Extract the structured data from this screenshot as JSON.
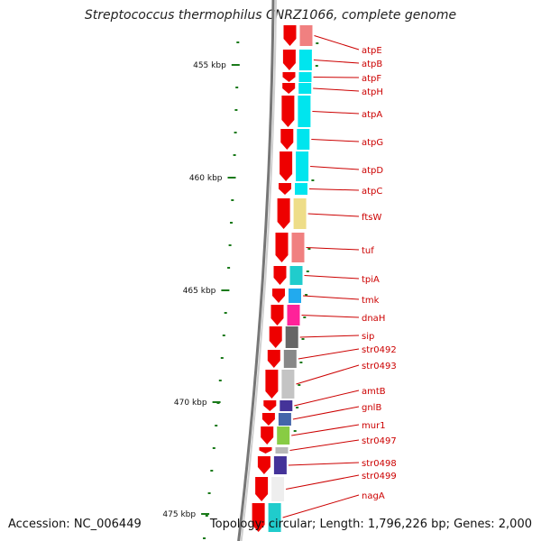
{
  "title": "Streptococcus thermophilus CNRZ1066, complete genome",
  "footer": {
    "accession": "Accession: NC_006449",
    "summary": "Topology: circular; Length: 1,796,226 bp; Genes: 2,000"
  },
  "colors": {
    "gene_arrow": "#ee0000",
    "backbone": "#888888",
    "tick": "#1a7a1a",
    "label": "#cc0000"
  },
  "ticks": [
    {
      "kbp": 455,
      "label": "455 kbp"
    },
    {
      "kbp": 460,
      "label": "460 kbp"
    },
    {
      "kbp": 465,
      "label": "465 kbp"
    },
    {
      "kbp": 470,
      "label": "470 kbp"
    },
    {
      "kbp": 475,
      "label": "475 kbp"
    }
  ],
  "genes": [
    {
      "name": "atpE",
      "color": "#f08080"
    },
    {
      "name": "atpB",
      "color": "#00e5ee"
    },
    {
      "name": "atpF",
      "color": "#00e5ee"
    },
    {
      "name": "atpH",
      "color": "#00e5ee"
    },
    {
      "name": "atpA",
      "color": "#00e5ee"
    },
    {
      "name": "atpG",
      "color": "#00e5ee"
    },
    {
      "name": "atpD",
      "color": "#00e5ee"
    },
    {
      "name": "atpC",
      "color": "#00e5ee"
    },
    {
      "name": "ftsW",
      "color": "#eedd88"
    },
    {
      "name": "tuf",
      "color": "#f08080"
    },
    {
      "name": "tpiA",
      "color": "#20cccc"
    },
    {
      "name": "tmk",
      "color": "#22aaee"
    },
    {
      "name": "dnaH",
      "color": "#ff2299"
    },
    {
      "name": "sip",
      "color": "#666666"
    },
    {
      "name": "str0492",
      "color": "#888888"
    },
    {
      "name": "str0493",
      "color": "#c4c4c4"
    },
    {
      "name": "amtB",
      "color": "#443399"
    },
    {
      "name": "gnlB",
      "color": "#4466aa"
    },
    {
      "name": "mur1",
      "color": "#88cc44"
    },
    {
      "name": "str0497",
      "color": "#b8b8b8"
    },
    {
      "name": "str0498",
      "color": "#443399"
    },
    {
      "name": "str0499",
      "color": "#eeeeee"
    },
    {
      "name": "nagA",
      "color": "#20cccc"
    }
  ]
}
